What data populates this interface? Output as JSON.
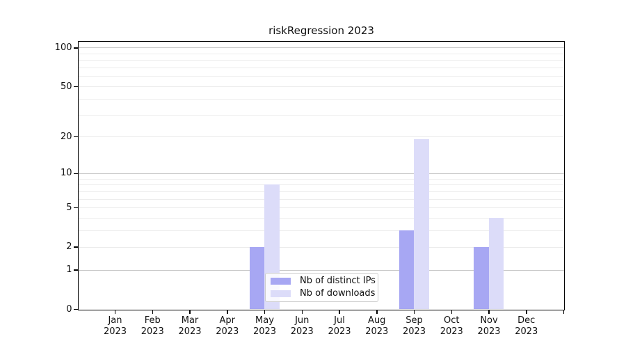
{
  "title": "riskRegression 2023",
  "chart_data": {
    "type": "bar",
    "title": "riskRegression 2023",
    "yscale": "log1p",
    "grid": "horizontal",
    "legend_position": "lower center",
    "categories": [
      "Jan 2023",
      "Feb 2023",
      "Mar 2023",
      "Apr 2023",
      "May 2023",
      "Jun 2023",
      "Jul 2023",
      "Aug 2023",
      "Sep 2023",
      "Oct 2023",
      "Nov 2023",
      "Dec 2023"
    ],
    "series": [
      {
        "name": "Nb of distinct IPs",
        "color": "#a7a7f3",
        "values": [
          0,
          0,
          0,
          0,
          2,
          0,
          0,
          0,
          3,
          0,
          2,
          0
        ]
      },
      {
        "name": "Nb of downloads",
        "color": "#dcdcf9",
        "values": [
          0,
          0,
          0,
          0,
          8,
          0,
          0,
          0,
          19,
          0,
          4,
          0
        ]
      }
    ],
    "yticks": [
      0,
      1,
      2,
      5,
      10,
      20,
      50,
      100
    ],
    "gridlines_major": [
      1,
      10,
      100
    ],
    "gridlines_minor": [
      2,
      3,
      4,
      5,
      6,
      7,
      8,
      9,
      20,
      30,
      40,
      50,
      60,
      70,
      80,
      90
    ],
    "ylim": [
      0,
      111
    ],
    "xlabel": "",
    "ylabel": ""
  },
  "colors": {
    "grid_major": "#c8c8c8",
    "grid_minor": "#ececec",
    "axis": "#000000",
    "legend_border": "#cccccc"
  }
}
